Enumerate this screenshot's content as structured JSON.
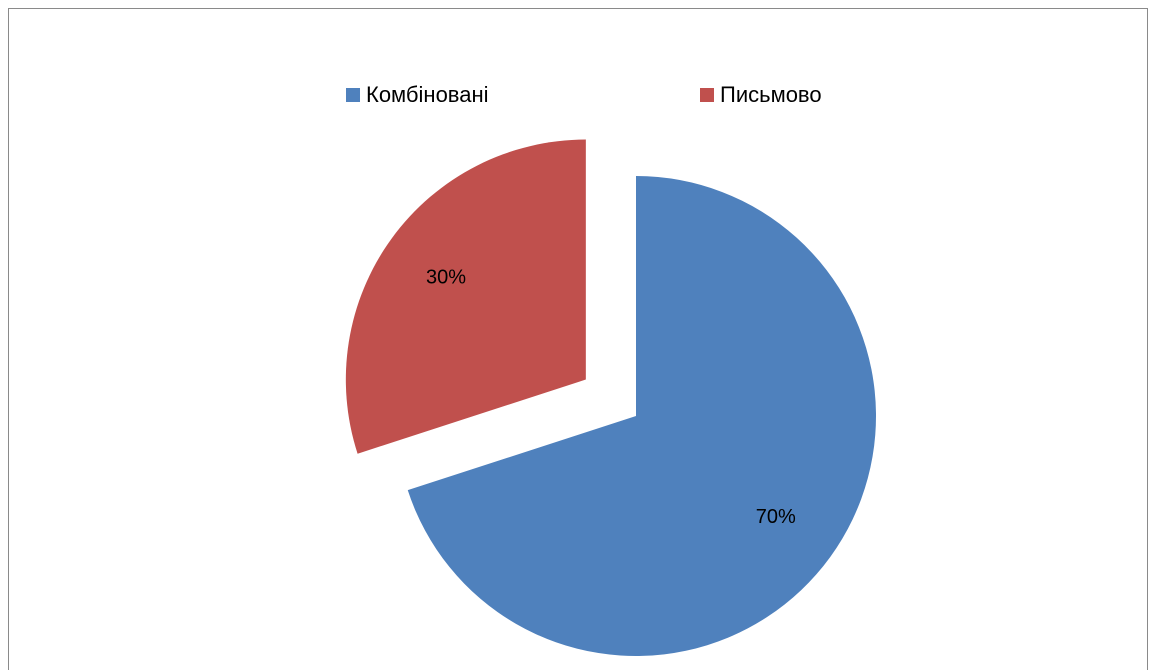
{
  "chart_data": {
    "type": "pie",
    "categories": [
      "Комбіновані",
      "Письмово"
    ],
    "values": [
      70,
      30
    ],
    "value_labels": [
      "70%",
      "30%"
    ],
    "colors": [
      "#4F81BD",
      "#C0504D"
    ],
    "exploded": [
      false,
      true
    ],
    "legend_position": "top",
    "title": ""
  }
}
